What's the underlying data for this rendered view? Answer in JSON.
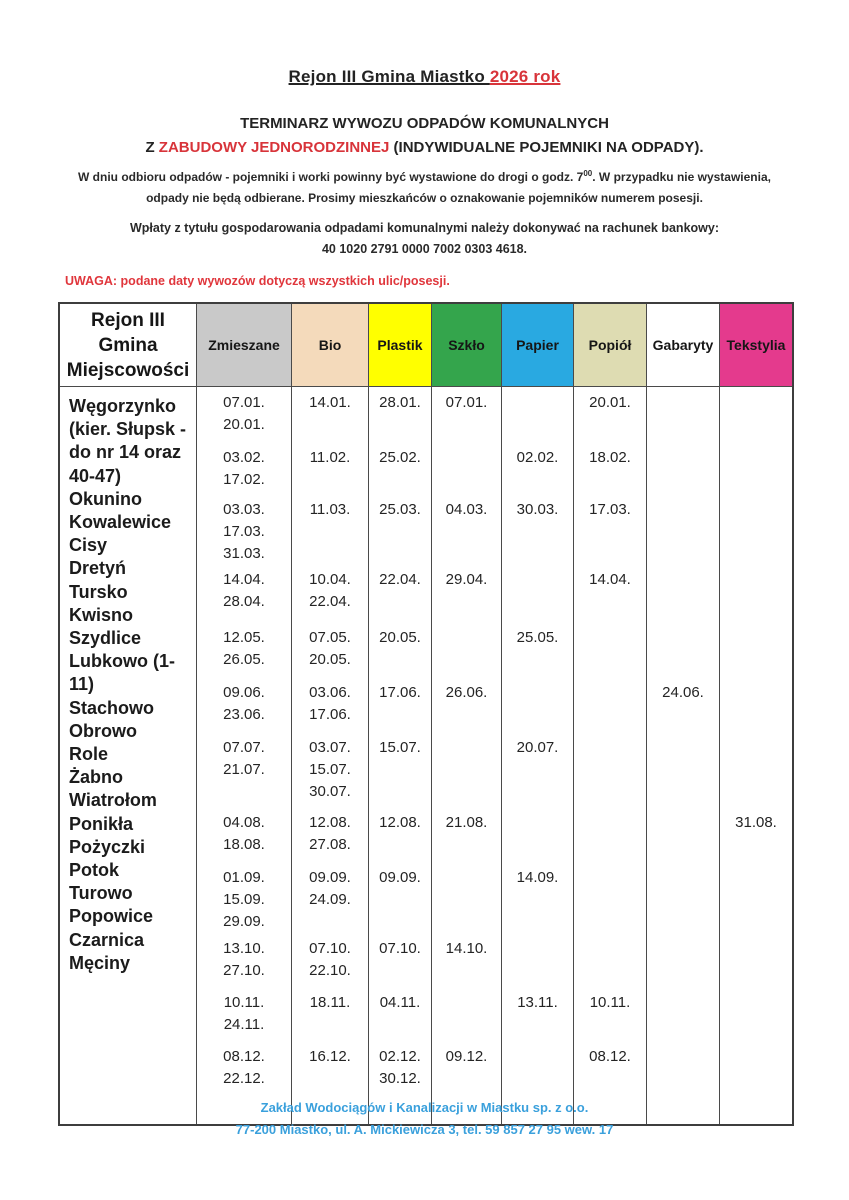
{
  "page": {
    "title_black": "Rejon III  Gmina Miastko ",
    "title_red": "2026 rok",
    "subtitle1": "TERMINARZ WYWOZU ODPADÓW KOMUNALNYCH",
    "subtitle2_prefix": "Z ",
    "subtitle2_red": "ZABUDOWY JEDNORODZINNEJ",
    "subtitle2_suffix": " (INDYWIDUALNE POJEMNIKI NA ODPADY).",
    "instruction_line1_before_sup": "W dniu odbioru odpadów  - pojemniki i worki powinny być wystawione do drogi o godz. 7",
    "instruction_sup": "00",
    "instruction_line1_after_sup": ". W przypadku nie wystawienia,",
    "instruction_line2": "odpady nie będą odbierane. Prosimy mieszkańców o oznakowanie pojemników numerem posesji.",
    "payment_line1": "Wpłaty z tytułu gospodarowania odpadami komunalnymi należy dokonywać na rachunek bankowy:",
    "payment_line2": "40 1020 2791 0000 7002 0303 4618.",
    "warning": "UWAGA: podane daty wywozów dotyczą wszystkich ulic/posesji."
  },
  "colors": {
    "accent_red": "#d8343a",
    "footer_blue": "#3aa0dc"
  },
  "table": {
    "corner_header_line1": "Rejon III Gmina",
    "corner_header_line2": "Miejscowości",
    "columns": [
      {
        "key": "zmieszane",
        "label": "Zmieszane",
        "bg": "#c9c9c9"
      },
      {
        "key": "bio",
        "label": "Bio",
        "bg": "#f4dabb"
      },
      {
        "key": "plastik",
        "label": "Plastik",
        "bg": "#ffff00"
      },
      {
        "key": "szklo",
        "label": "Szkło",
        "bg": "#34a54c"
      },
      {
        "key": "papier",
        "label": "Papier",
        "bg": "#29a9e1"
      },
      {
        "key": "popiol",
        "label": "Popiół",
        "bg": "#dedcb2"
      },
      {
        "key": "gabaryty",
        "label": "Gabaryty",
        "bg": "#ffffff"
      },
      {
        "key": "tekstylia",
        "label": "Tekstylia",
        "bg": "#e43a8d"
      }
    ],
    "location_lines": [
      "Węgorzynko",
      "(kier. Słupsk -",
      "do nr 14 oraz",
      "40-47)",
      "Okunino",
      "Kowalewice",
      "Cisy",
      "Dretyń",
      "Tursko",
      "Kwisno",
      "Szydlice",
      "Lubkowo (1-",
      "11)",
      "Stachowo",
      "Obrowo",
      "Role",
      "Żabno",
      "Wiatrołom",
      "Ponikła",
      "Pożyczki",
      "Potok",
      "Turowo",
      "Popowice",
      "Czarnica",
      "Męciny"
    ],
    "months": [
      {
        "zmieszane": [
          "07.01.",
          "20.01."
        ],
        "bio": [
          "14.01."
        ],
        "plastik": [
          "28.01."
        ],
        "szklo": [
          "07.01."
        ],
        "papier": [],
        "popiol": [
          "20.01."
        ],
        "gabaryty": [],
        "tekstylia": []
      },
      {
        "zmieszane": [
          "03.02.",
          "17.02."
        ],
        "bio": [
          "11.02."
        ],
        "plastik": [
          "25.02."
        ],
        "szklo": [],
        "papier": [
          "02.02."
        ],
        "popiol": [
          "18.02."
        ],
        "gabaryty": [],
        "tekstylia": []
      },
      {
        "zmieszane": [
          "03.03.",
          "17.03.",
          "31.03."
        ],
        "bio": [
          "11.03."
        ],
        "plastik": [
          "25.03."
        ],
        "szklo": [
          "04.03."
        ],
        "papier": [
          "30.03."
        ],
        "popiol": [
          "17.03."
        ],
        "gabaryty": [],
        "tekstylia": []
      },
      {
        "zmieszane": [
          "14.04.",
          "28.04."
        ],
        "bio": [
          "10.04.",
          "22.04."
        ],
        "plastik": [
          "22.04."
        ],
        "szklo": [
          "29.04."
        ],
        "papier": [],
        "popiol": [
          "14.04."
        ],
        "gabaryty": [],
        "tekstylia": []
      },
      {
        "zmieszane": [
          "12.05.",
          "26.05."
        ],
        "bio": [
          "07.05.",
          "20.05."
        ],
        "plastik": [
          "20.05."
        ],
        "szklo": [],
        "papier": [
          "25.05."
        ],
        "popiol": [],
        "gabaryty": [],
        "tekstylia": []
      },
      {
        "zmieszane": [
          "09.06.",
          "23.06."
        ],
        "bio": [
          "03.06.",
          "17.06."
        ],
        "plastik": [
          "17.06."
        ],
        "szklo": [
          "26.06."
        ],
        "papier": [],
        "popiol": [],
        "gabaryty": [
          "24.06."
        ],
        "tekstylia": []
      },
      {
        "zmieszane": [
          "07.07.",
          "21.07."
        ],
        "bio": [
          "03.07.",
          "15.07.",
          "30.07."
        ],
        "plastik": [
          "15.07."
        ],
        "szklo": [],
        "papier": [
          "20.07."
        ],
        "popiol": [],
        "gabaryty": [],
        "tekstylia": []
      },
      {
        "zmieszane": [
          "04.08.",
          "18.08."
        ],
        "bio": [
          "12.08.",
          "27.08."
        ],
        "plastik": [
          "12.08."
        ],
        "szklo": [
          "21.08."
        ],
        "papier": [],
        "popiol": [],
        "gabaryty": [],
        "tekstylia": [
          "31.08."
        ]
      },
      {
        "zmieszane": [
          "01.09.",
          "15.09.",
          "29.09."
        ],
        "bio": [
          "09.09.",
          "24.09."
        ],
        "plastik": [
          "09.09."
        ],
        "szklo": [],
        "papier": [
          "14.09."
        ],
        "popiol": [],
        "gabaryty": [],
        "tekstylia": []
      },
      {
        "zmieszane": [
          "13.10.",
          "27.10."
        ],
        "bio": [
          "07.10.",
          "22.10."
        ],
        "plastik": [
          "07.10."
        ],
        "szklo": [
          "14.10."
        ],
        "papier": [],
        "popiol": [],
        "gabaryty": [],
        "tekstylia": []
      },
      {
        "zmieszane": [
          "10.11.",
          "24.11."
        ],
        "bio": [
          "18.11."
        ],
        "plastik": [
          "04.11."
        ],
        "szklo": [],
        "papier": [
          "13.11."
        ],
        "popiol": [
          "10.11."
        ],
        "gabaryty": [],
        "tekstylia": []
      },
      {
        "zmieszane": [
          "08.12.",
          "22.12."
        ],
        "bio": [
          "16.12."
        ],
        "plastik": [
          "02.12.",
          "30.12."
        ],
        "szklo": [
          "09.12."
        ],
        "papier": [],
        "popiol": [
          "08.12."
        ],
        "gabaryty": [],
        "tekstylia": []
      }
    ]
  },
  "footer": {
    "line1": "Zakład Wodociągów i Kanalizacji w Miastku sp. z o.o.",
    "line2": "77-200 Miastko, ul. A. Mickiewicza 3, tel. 59 857 27 95 wew. 17"
  }
}
